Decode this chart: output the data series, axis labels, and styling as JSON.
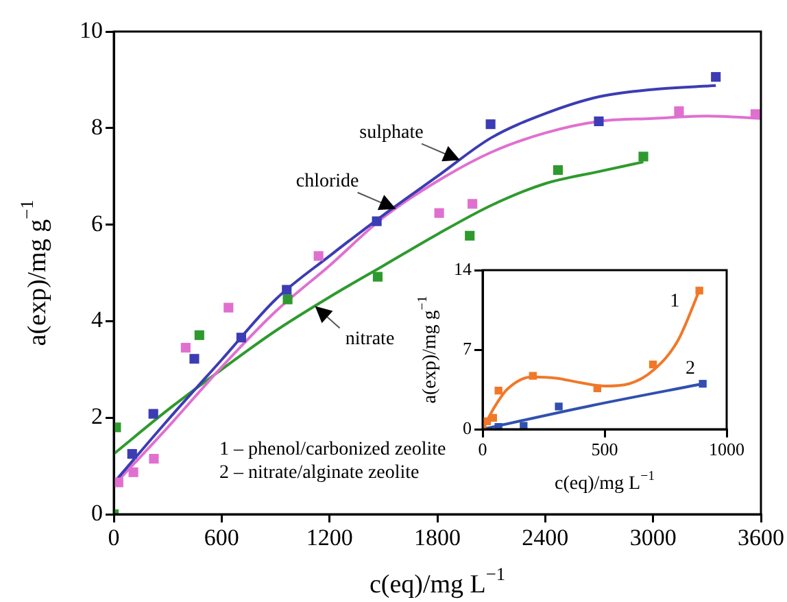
{
  "chart_data": [
    {
      "type": "scatter",
      "xlabel": "c(eq)/mg L$^{−1}$",
      "ylabel": "a(exp)/mg g$^{−1}$",
      "xlim": [
        0,
        3600
      ],
      "xticks": [
        0,
        600,
        1200,
        1800,
        2400,
        3000,
        3600
      ],
      "ylim": [
        0,
        10
      ],
      "yticks": [
        0,
        2,
        4,
        6,
        8,
        10
      ],
      "marker": "square",
      "grid": false,
      "legend": false,
      "series": [
        {
          "type": "scatter",
          "color": "#3c3cb4",
          "x": [
            102,
            220,
            448,
            709,
            962,
            1463,
            2096,
            2698,
            3349
          ],
          "values": [
            1.25,
            2.08,
            3.22,
            3.66,
            4.65,
            6.07,
            8.08,
            8.14,
            9.06
          ]
        },
        {
          "type": "scatter",
          "color": "#e070d0",
          "x": [
            26,
            109,
            223,
            400,
            638,
            1139,
            1810,
            1995,
            3144,
            3569
          ],
          "values": [
            0.66,
            0.87,
            1.15,
            3.45,
            4.28,
            5.35,
            6.24,
            6.43,
            8.35,
            8.29
          ]
        },
        {
          "type": "scatter",
          "color": "#2e9a2e",
          "x": [
            0,
            13,
            476,
            967,
            1468,
            1980,
            2471,
            2946
          ],
          "values": [
            0,
            1.8,
            3.71,
            4.45,
            4.92,
            5.77,
            7.13,
            7.41
          ]
        },
        {
          "type": "line",
          "name": "sulphate",
          "marker": "none",
          "color": "#3c3cb4",
          "x": [
            0,
            300,
            600,
            900,
            1200,
            1500,
            1800,
            2100,
            2400,
            2700,
            3000,
            3349
          ],
          "values": [
            0.65,
            1.95,
            3.2,
            4.45,
            5.35,
            6.2,
            7.0,
            7.8,
            8.3,
            8.65,
            8.8,
            8.88
          ]
        },
        {
          "type": "line",
          "name": "chloride",
          "marker": "none",
          "color": "#e070d0",
          "x": [
            0,
            300,
            600,
            900,
            1200,
            1500,
            1800,
            2100,
            2400,
            2700,
            3000,
            3300,
            3600
          ],
          "values": [
            0.6,
            1.8,
            3.05,
            4.2,
            5.15,
            6.15,
            6.9,
            7.5,
            7.9,
            8.14,
            8.2,
            8.25,
            8.2
          ]
        },
        {
          "type": "line",
          "name": "nitrate",
          "marker": "none",
          "color": "#2e9a2e",
          "x": [
            0,
            300,
            600,
            900,
            1200,
            1500,
            1800,
            2100,
            2400,
            2700,
            2946
          ],
          "values": [
            1.25,
            2.16,
            3.0,
            3.8,
            4.5,
            5.15,
            5.8,
            6.4,
            6.85,
            7.1,
            7.3
          ]
        }
      ],
      "annotations": [
        "1 – phenol/carbonized zeolite",
        "2 – nitrate/alginate zeolite"
      ]
    },
    {
      "type": "scatter",
      "xlabel": "c(eq)/mg L$^{−1}$",
      "ylabel": "a(exp)/mg g$^{−1}$",
      "xlim": [
        0,
        1000
      ],
      "xticks": [
        0,
        500,
        1000
      ],
      "ylim": [
        0,
        14
      ],
      "yticks": [
        0,
        7,
        14
      ],
      "marker": "square",
      "grid": false,
      "legend": false,
      "series": [
        {
          "type": "line",
          "name": "1",
          "marker": "none",
          "color": "#f07828",
          "x": [
            0,
            50,
            100,
            200,
            300,
            400,
            500,
            600,
            700,
            800,
            888
          ],
          "values": [
            0,
            2,
            3.5,
            4.6,
            4.5,
            4.1,
            3.8,
            4.0,
            5.2,
            7.8,
            12.2
          ]
        },
        {
          "type": "line",
          "name": "2",
          "marker": "none",
          "color": "#3050b0",
          "x": [
            0,
            450,
            902
          ],
          "values": [
            0,
            2.1,
            4.0
          ]
        },
        {
          "type": "scatter",
          "color": "#f07828",
          "x": [
            0,
            18,
            43,
            65,
            206,
            470,
            698,
            888
          ],
          "values": [
            0,
            0.7,
            1.0,
            3.4,
            4.7,
            3.6,
            5.7,
            12.2
          ]
        },
        {
          "type": "scatter",
          "color": "#3050b0",
          "x": [
            65,
            168,
            312,
            902
          ],
          "values": [
            0.2,
            0.3,
            2.0,
            4.0
          ]
        }
      ]
    }
  ]
}
